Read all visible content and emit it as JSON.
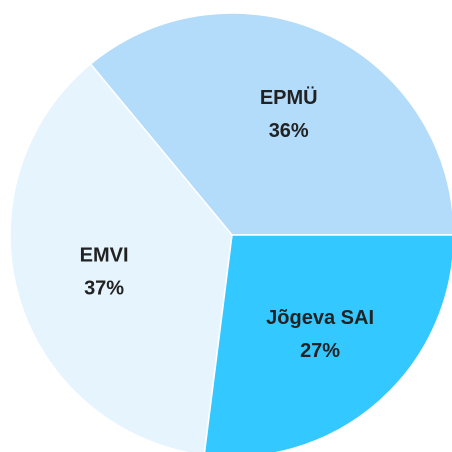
{
  "chart_data": {
    "type": "pie",
    "categories": [
      "EPMÜ",
      "EMVI",
      "Jõgeva SAI"
    ],
    "values": [
      36,
      37,
      27
    ],
    "value_labels": [
      "36%",
      "37%",
      "27%"
    ],
    "colors": [
      "#b3dcfb",
      "#e6f4fe",
      "#33c8ff"
    ]
  }
}
